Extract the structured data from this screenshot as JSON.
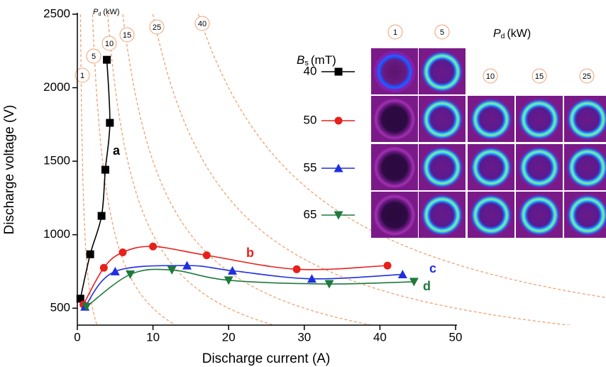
{
  "chart_data": {
    "type": "line",
    "x_label": "Discharge current (A)",
    "y_label": "Discharge voltage (V)",
    "xlim": [
      0,
      50
    ],
    "xticks": [
      0,
      10,
      20,
      30,
      40,
      50
    ],
    "ylim": [
      385,
      2500
    ],
    "yticks": [
      500,
      1000,
      1500,
      2000,
      2500
    ],
    "legend_title": {
      "symbol": "B",
      "subscript": "s",
      "unit": "(mT)"
    },
    "series": [
      {
        "name": "40",
        "color": "#000000",
        "marker": "square",
        "label": "a",
        "x": [
          0.4,
          1.7,
          3.2,
          3.7,
          4.3,
          3.9
        ],
        "values": [
          565,
          867,
          1128,
          1442,
          1761,
          2190
        ]
      },
      {
        "name": "50",
        "color": "#e8201c",
        "marker": "circle",
        "label": "b",
        "x": [
          0.8,
          3.5,
          6,
          10,
          17.1,
          29,
          41
        ],
        "values": [
          525,
          775,
          880,
          920,
          860,
          765,
          790
        ]
      },
      {
        "name": "55",
        "color": "#1f2fe0",
        "marker": "triangle-up",
        "label": "c",
        "x": [
          1,
          5,
          14.5,
          20.5,
          31,
          43
        ],
        "values": [
          510,
          750,
          790,
          755,
          700,
          730
        ]
      },
      {
        "name": "65",
        "color": "#1e7a3c",
        "marker": "triangle-down",
        "label": "d",
        "x": [
          1.2,
          7,
          12.5,
          20,
          33.3,
          44.5
        ],
        "values": [
          510,
          730,
          760,
          690,
          665,
          680
        ]
      }
    ],
    "power_curves": {
      "title": {
        "symbol": "P",
        "subscript": "d",
        "unit": "(kW)"
      },
      "color": "#f0a070",
      "values": [
        1,
        5,
        10,
        15,
        25,
        40
      ]
    },
    "inset": {
      "title": {
        "symbol": "P",
        "subscript": "d",
        "unit": "(kW)"
      },
      "columns": [
        1,
        5,
        10,
        15,
        25
      ]
    }
  }
}
